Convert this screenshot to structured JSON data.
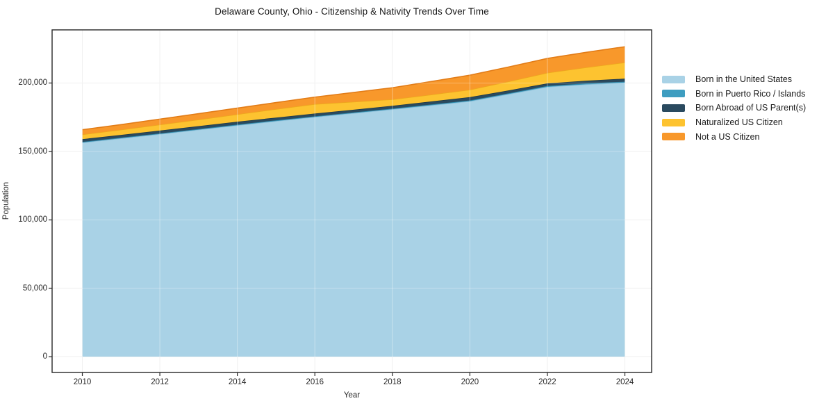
{
  "title": "Delaware County, Ohio - Citizenship & Nativity Trends Over Time",
  "chart_data": {
    "type": "area",
    "stacked": true,
    "title": "Delaware County, Ohio - Citizenship & Nativity Trends Over Time",
    "xlabel": "Year",
    "ylabel": "Population",
    "x": [
      2010,
      2011,
      2012,
      2013,
      2014,
      2015,
      2016,
      2017,
      2018,
      2019,
      2020,
      2021,
      2022,
      2023,
      2024
    ],
    "xticks": [
      2010,
      2012,
      2014,
      2016,
      2018,
      2020,
      2022,
      2024
    ],
    "yticks": [
      0,
      50000,
      100000,
      150000,
      200000
    ],
    "ytick_labels": [
      "0",
      "50,000",
      "100,000",
      "150,000",
      "200,000"
    ],
    "xlim": [
      2009.22,
      2024.69
    ],
    "ylim": [
      -11420,
      238800
    ],
    "grid": true,
    "legend_position": "right",
    "series": [
      {
        "name": "Born in the United States",
        "color": "#a9d2e6",
        "edge": "#8cc0da",
        "values": [
          156500,
          159600,
          162700,
          165900,
          169100,
          172200,
          175200,
          178000,
          180800,
          183700,
          186700,
          191900,
          197200,
          199000,
          200200
        ]
      },
      {
        "name": "Born in Puerto Rico / Islands",
        "color": "#3e9dc0",
        "edge": "#2f87a8",
        "values": [
          500,
          500,
          500,
          500,
          550,
          550,
          500,
          500,
          550,
          600,
          600,
          600,
          650,
          700,
          800
        ]
      },
      {
        "name": "Born Abroad of US Parent(s)",
        "color": "#2a4a5f",
        "edge": "#1f3948",
        "values": [
          2000,
          2000,
          2100,
          2100,
          2100,
          2000,
          2000,
          2000,
          2000,
          2200,
          2400,
          2100,
          1900,
          2000,
          2200
        ]
      },
      {
        "name": "Naturalized US Citizen",
        "color": "#fdc330",
        "edge": "#eda91c",
        "values": [
          3400,
          3800,
          4300,
          4800,
          5400,
          6200,
          6900,
          5800,
          4700,
          5000,
          5400,
          6500,
          7700,
          9700,
          11800
        ]
      },
      {
        "name": "Not a US Citizen",
        "color": "#f8982b",
        "edge": "#e27c17",
        "values": [
          3500,
          3700,
          4000,
          4300,
          4500,
          4800,
          5100,
          6800,
          8500,
          9600,
          10600,
          10600,
          10500,
          11000,
          11500
        ]
      }
    ]
  }
}
